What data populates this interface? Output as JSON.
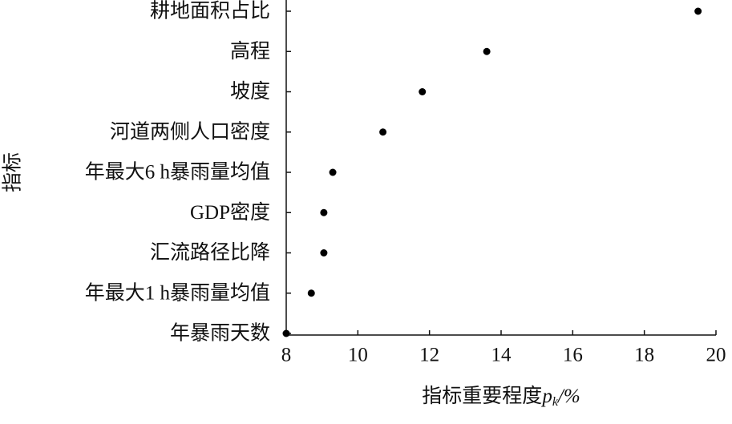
{
  "chart_data": {
    "type": "dot",
    "y_label": "指标",
    "x_label": {
      "text": "指标重要程度",
      "var": "p",
      "sub": "k",
      "unit": "/%"
    },
    "categories": [
      "耕地面积占比",
      "高程",
      "坡度",
      "河道两侧人口密度",
      "年最大6 h暴雨量均值",
      "GDP密度",
      "汇流路径比降",
      "年最大1 h暴雨量均值",
      "年暴雨天数"
    ],
    "values": [
      19.5,
      13.6,
      11.8,
      10.7,
      9.3,
      9.05,
      9.05,
      8.7,
      8.0
    ],
    "color": "#000000",
    "xlim": [
      8,
      20
    ],
    "xticks": [
      8,
      10,
      12,
      14,
      16,
      18,
      20
    ]
  }
}
